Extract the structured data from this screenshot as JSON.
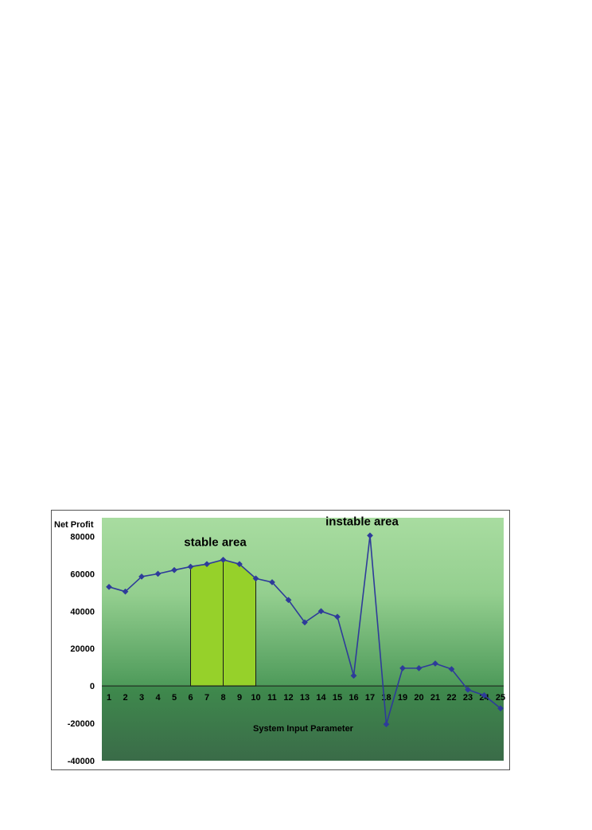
{
  "chart_data": {
    "type": "line",
    "ylabel": "Net Profit",
    "xlabel": "System Input Parameter",
    "ylim": [
      -40000,
      90000
    ],
    "yticks": [
      80000,
      60000,
      40000,
      20000,
      0,
      -20000,
      -40000
    ],
    "x": [
      1,
      2,
      3,
      4,
      5,
      6,
      7,
      8,
      9,
      10,
      11,
      12,
      13,
      14,
      15,
      16,
      17,
      18,
      19,
      20,
      21,
      22,
      23,
      24,
      25
    ],
    "series": [
      {
        "values": [
          53000,
          50500,
          58500,
          60000,
          62000,
          63800,
          65200,
          67500,
          65200,
          57500,
          55500,
          46000,
          34000,
          40000,
          37000,
          5500,
          80500,
          -20500,
          9500,
          9500,
          12000,
          9000,
          -2000,
          -5000,
          -12000
        ],
        "color": "#2e3b9a"
      }
    ],
    "highlight": {
      "x_range": [
        6,
        10
      ],
      "divider_x": 8,
      "color": "#96d12a"
    },
    "annotations": [
      {
        "text": "stable area",
        "x": 8,
        "y": 77000
      },
      {
        "text": "instable area",
        "x": 17,
        "y": 88000
      }
    ],
    "background": {
      "above_zero_top": "#a8dca0",
      "above_zero_bottom": "#4e9a5a",
      "below_zero_top": "#3f8a4d",
      "below_zero_bottom": "#3a6b48"
    },
    "grid": false,
    "legend": "none"
  }
}
